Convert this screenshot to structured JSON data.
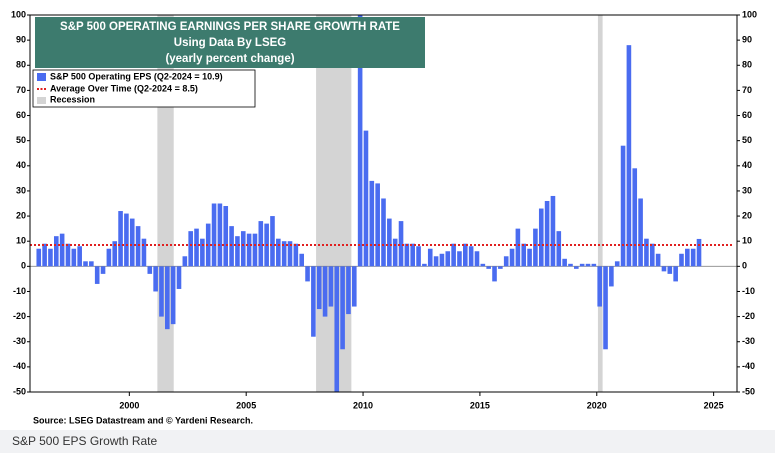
{
  "chart_data": {
    "type": "bar",
    "title": "S&P 500 OPERATING EARNINGS PER SHARE GROWTH RATE",
    "subtitle": "Using Data By LSEG",
    "subtitle2": "(yearly percent change)",
    "source": "Source: LSEG Datastream and © Yardeni Research.",
    "caption": "S&P 500 EPS Growth Rate",
    "x": [
      1996.125,
      1996.375,
      1996.625,
      1996.875,
      1997.125,
      1997.375,
      1997.625,
      1997.875,
      1998.125,
      1998.375,
      1998.625,
      1998.875,
      1999.125,
      1999.375,
      1999.625,
      1999.875,
      2000.125,
      2000.375,
      2000.625,
      2000.875,
      2001.125,
      2001.375,
      2001.625,
      2001.875,
      2002.125,
      2002.375,
      2002.625,
      2002.875,
      2003.125,
      2003.375,
      2003.625,
      2003.875,
      2004.125,
      2004.375,
      2004.625,
      2004.875,
      2005.125,
      2005.375,
      2005.625,
      2005.875,
      2006.125,
      2006.375,
      2006.625,
      2006.875,
      2007.125,
      2007.375,
      2007.625,
      2007.875,
      2008.125,
      2008.375,
      2008.625,
      2008.875,
      2009.125,
      2009.375,
      2009.625,
      2009.875,
      2010.125,
      2010.375,
      2010.625,
      2010.875,
      2011.125,
      2011.375,
      2011.625,
      2011.875,
      2012.125,
      2012.375,
      2012.625,
      2012.875,
      2013.125,
      2013.375,
      2013.625,
      2013.875,
      2014.125,
      2014.375,
      2014.625,
      2014.875,
      2015.125,
      2015.375,
      2015.625,
      2015.875,
      2016.125,
      2016.375,
      2016.625,
      2016.875,
      2017.125,
      2017.375,
      2017.625,
      2017.875,
      2018.125,
      2018.375,
      2018.625,
      2018.875,
      2019.125,
      2019.375,
      2019.625,
      2019.875,
      2020.125,
      2020.375,
      2020.625,
      2020.875,
      2021.125,
      2021.375,
      2021.625,
      2021.875,
      2022.125,
      2022.375,
      2022.625,
      2022.875,
      2023.125,
      2023.375,
      2023.625,
      2023.875,
      2024.125,
      2024.375
    ],
    "series": [
      {
        "name": "S&P 500 Operating EPS  (Q2-2024 = 10.9)",
        "color": "#4a6cf0",
        "values": [
          7,
          9,
          7,
          12,
          13,
          9,
          7,
          8,
          2,
          2,
          -7,
          -3,
          7,
          10,
          22,
          21,
          19,
          16,
          11,
          -3,
          -10,
          -20,
          -25,
          -23,
          -9,
          4,
          14,
          15,
          11,
          17,
          25,
          25,
          24,
          16,
          12,
          14,
          13,
          13,
          18,
          17,
          20,
          11,
          10,
          10,
          9,
          5,
          -6,
          -28,
          -17,
          -20,
          -16,
          -50,
          -33,
          -19,
          -16,
          100,
          54,
          34,
          33,
          27,
          19,
          11,
          18,
          9,
          9,
          8,
          1,
          7,
          4,
          5,
          6,
          9,
          6,
          9,
          8,
          6,
          1,
          -1,
          -6,
          -1,
          4,
          7,
          15,
          9,
          7,
          15,
          23,
          26,
          28,
          14,
          3,
          1,
          -1,
          1,
          1,
          1,
          -16,
          -33,
          -8,
          2,
          48,
          88,
          39,
          27,
          11,
          9,
          5,
          -2,
          -3,
          -6,
          5,
          7,
          7,
          10.9
        ]
      }
    ],
    "average": {
      "name": "Average Over Time  (Q2-2024 = 8.5)",
      "value": 8.5,
      "color": "#e02020"
    },
    "recession": {
      "name": "Recession",
      "color": "#d4d4d4",
      "spans": [
        [
          2001.2,
          2001.9
        ],
        [
          2007.99,
          2009.5
        ],
        [
          2020.05,
          2020.25
        ]
      ]
    },
    "xlim": [
      1995.75,
      2026
    ],
    "xticks": [
      2000,
      2005,
      2010,
      2015,
      2020,
      2025
    ],
    "ylim": [
      -50,
      100
    ],
    "yticks": [
      -50,
      -40,
      -30,
      -20,
      -10,
      0,
      10,
      20,
      30,
      40,
      50,
      60,
      70,
      80,
      90,
      100
    ]
  }
}
